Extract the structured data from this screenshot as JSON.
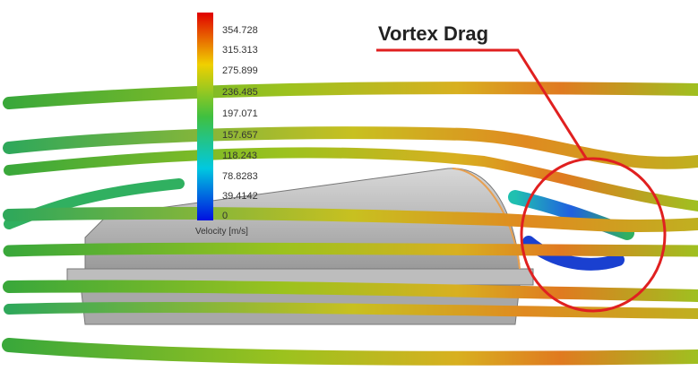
{
  "legend": {
    "ticks": [
      "354.728",
      "315.313",
      "275.899",
      "236.485",
      "197.071",
      "157.657",
      "118.243",
      "78.8283",
      "39.4142",
      "0"
    ],
    "label": "Velocity [m/s]"
  },
  "annotation": {
    "label": "Vortex Drag"
  }
}
